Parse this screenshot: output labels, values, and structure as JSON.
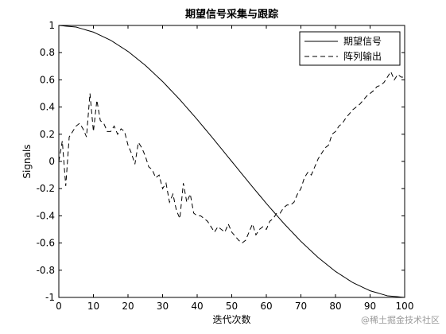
{
  "chart_data": {
    "type": "line",
    "title": "期望信号采集与跟踪",
    "xlabel": "迭代次数",
    "ylabel": "Signals",
    "xlim": [
      0,
      100
    ],
    "ylim": [
      -1,
      1
    ],
    "xticks": [
      0,
      10,
      20,
      30,
      40,
      50,
      60,
      70,
      80,
      90,
      100
    ],
    "yticks": [
      1,
      0.8,
      0.6,
      0.4,
      0.2,
      0,
      -0.2,
      -0.4,
      -0.6,
      -0.8,
      -1
    ],
    "grid": false,
    "legend": "top-right",
    "series": [
      {
        "name": "期望信号",
        "style": "solid",
        "x": [
          0,
          5,
          10,
          15,
          20,
          25,
          30,
          35,
          40,
          45,
          50,
          55,
          60,
          65,
          70,
          75,
          80,
          85,
          90,
          95,
          100
        ],
        "values": [
          1.0,
          0.988,
          0.951,
          0.891,
          0.809,
          0.707,
          0.588,
          0.454,
          0.309,
          0.156,
          0.0,
          -0.156,
          -0.309,
          -0.454,
          -0.588,
          -0.707,
          -0.809,
          -0.891,
          -0.951,
          -0.988,
          -1.0
        ]
      },
      {
        "name": "阵列输出",
        "style": "dashed",
        "x": [
          0,
          1,
          2,
          3,
          4,
          5,
          6,
          7,
          8,
          9,
          10,
          11,
          12,
          13,
          14,
          15,
          16,
          17,
          18,
          19,
          20,
          21,
          22,
          23,
          24,
          25,
          26,
          27,
          28,
          29,
          30,
          31,
          32,
          33,
          34,
          35,
          36,
          37,
          38,
          39,
          40,
          41,
          42,
          43,
          44,
          45,
          46,
          47,
          48,
          49,
          50,
          51,
          52,
          53,
          54,
          55,
          56,
          57,
          58,
          59,
          60,
          61,
          62,
          63,
          64,
          65,
          66,
          67,
          68,
          69,
          70,
          71,
          72,
          73,
          74,
          75,
          76,
          77,
          78,
          79,
          80,
          81,
          82,
          83,
          84,
          85,
          86,
          87,
          88,
          89,
          90,
          91,
          92,
          93,
          94,
          95,
          96,
          97,
          98,
          99,
          100
        ],
        "values": [
          0.0,
          0.15,
          -0.18,
          0.18,
          0.22,
          0.26,
          0.28,
          0.24,
          0.18,
          0.5,
          0.22,
          0.45,
          0.3,
          0.28,
          0.22,
          0.22,
          0.26,
          0.2,
          0.24,
          0.22,
          0.12,
          0.06,
          -0.02,
          0.14,
          0.1,
          0.04,
          -0.04,
          -0.06,
          -0.12,
          -0.1,
          -0.2,
          -0.16,
          -0.3,
          -0.24,
          -0.36,
          -0.42,
          -0.16,
          -0.3,
          -0.24,
          -0.38,
          -0.4,
          -0.4,
          -0.42,
          -0.44,
          -0.48,
          -0.52,
          -0.48,
          -0.5,
          -0.52,
          -0.46,
          -0.52,
          -0.55,
          -0.58,
          -0.6,
          -0.58,
          -0.52,
          -0.46,
          -0.54,
          -0.5,
          -0.48,
          -0.5,
          -0.44,
          -0.42,
          -0.38,
          -0.38,
          -0.34,
          -0.32,
          -0.32,
          -0.3,
          -0.24,
          -0.2,
          -0.12,
          -0.08,
          -0.1,
          -0.04,
          0.02,
          0.06,
          0.1,
          0.12,
          0.2,
          0.22,
          0.26,
          0.28,
          0.32,
          0.35,
          0.38,
          0.4,
          0.42,
          0.45,
          0.48,
          0.5,
          0.52,
          0.55,
          0.56,
          0.58,
          0.62,
          0.66,
          0.6,
          0.64,
          0.62,
          0.62
        ]
      }
    ]
  },
  "watermark": "@稀土掘金技术社区"
}
